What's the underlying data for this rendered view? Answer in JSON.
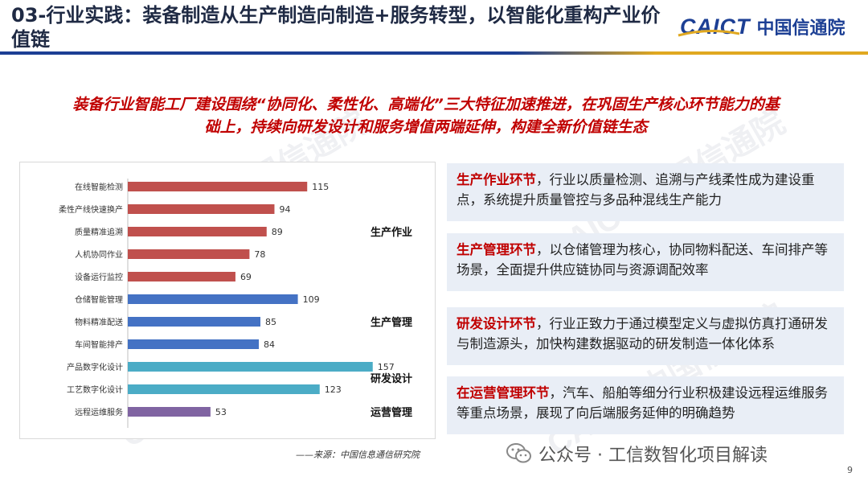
{
  "header": {
    "title": "03-行业实践：装备制造从生产制造向制造+服务转型，以智能化重构产业价值链",
    "logo_en": "CAICT",
    "logo_cn": "中国信通院"
  },
  "headline": {
    "line1": "装备行业智能工厂建设围绕“协同化、柔性化、高端化”三大特征加速推进，在巩固生产核心环节能力的基",
    "line2": "础上，持续向研发设计和服务增值两端延伸，构建全新价值链生态"
  },
  "chart_data": {
    "type": "bar",
    "orientation": "horizontal",
    "categories": [
      "在线智能检测",
      "柔性产线快速换产",
      "质量精准追溯",
      "人机协同作业",
      "设备运行监控",
      "仓储智能管理",
      "物料精准配送",
      "车间智能排产",
      "产品数字化设计",
      "工艺数字化设计",
      "远程运维服务"
    ],
    "values": [
      115,
      94,
      89,
      78,
      69,
      109,
      85,
      84,
      157,
      123,
      53
    ],
    "bar_colors": [
      "#c0504d",
      "#c0504d",
      "#c0504d",
      "#c0504d",
      "#c0504d",
      "#4472c4",
      "#4472c4",
      "#4472c4",
      "#4bacc6",
      "#4bacc6",
      "#8064a2"
    ],
    "groups": [
      {
        "name": "生产作业",
        "start": 0,
        "end": 4
      },
      {
        "name": "生产管理",
        "start": 5,
        "end": 7
      },
      {
        "name": "研发设计",
        "start": 8,
        "end": 9
      },
      {
        "name": "运营管理",
        "start": 10,
        "end": 10
      }
    ],
    "xlim": [
      0,
      170
    ],
    "title": "",
    "xlabel": "",
    "ylabel": ""
  },
  "source": "——来源：中国信息通信研究院",
  "cards": [
    {
      "highlight": "生产作业环节",
      "text": "，行业以质量检测、追溯与产线柔性成为建设重点，系统提升质量管控与多品种混线生产能力"
    },
    {
      "highlight": "生产管理环节",
      "text": "，以仓储管理为核心，协同物料配送、车间排产等场景，全面提升供应链协同与资源调配效率"
    },
    {
      "highlight": "研发设计环节",
      "text": "，行业正致力于通过模型定义与虚拟仿真打通研发与制造源头，加快构建数据驱动的研发制造一体化体系"
    },
    {
      "highlight": "在运营管理环节",
      "text": "，汽车、船舶等细分行业积极建设远程运维服务等重点场景，展现了向后端服务延伸的明确趋势"
    }
  ],
  "footer": {
    "account": "公众号 · 工信数智化项目解读",
    "page": "9"
  },
  "colors": {
    "accent": "#c00000",
    "brand": "#1c3f94",
    "card_bg": "#e9eef6"
  }
}
